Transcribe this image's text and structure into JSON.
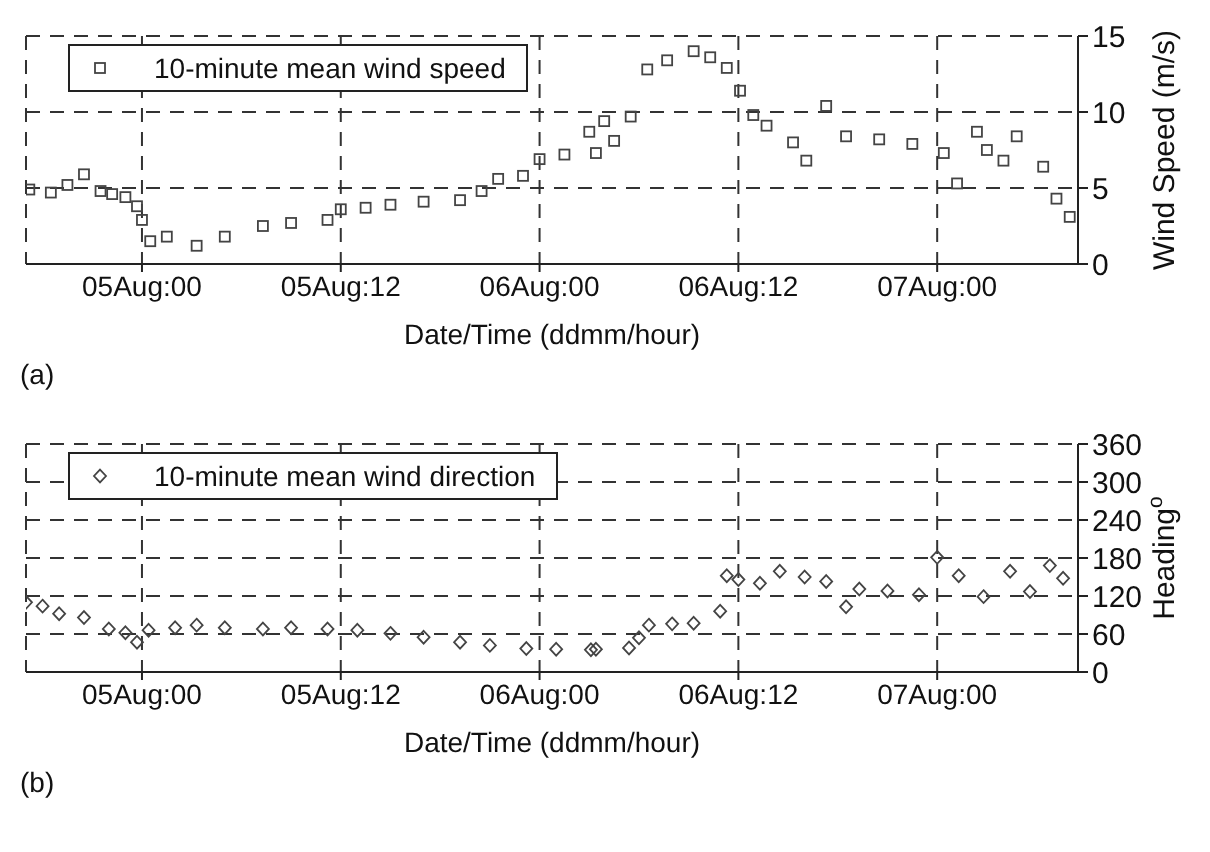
{
  "chart_data": [
    {
      "type": "scatter",
      "xlabel": "Date/Time (ddmm/hour)",
      "ylabel": "Wind Speed (m/s)",
      "annotations": [
        "(a)"
      ],
      "marker": "square",
      "grid": true,
      "legend": "top left",
      "xlim": [
        "--08-04T17:00",
        "--08-07T08:30"
      ],
      "xticks": [
        {
          "value": "--08-05T00:00",
          "label": "05Aug:00"
        },
        {
          "value": "--08-05T12:00",
          "label": "05Aug:12"
        },
        {
          "value": "--08-06T00:00",
          "label": "06Aug:00"
        },
        {
          "value": "--08-06T12:00",
          "label": "06Aug:12"
        },
        {
          "value": "--08-07T00:00",
          "label": "07Aug:00"
        }
      ],
      "ylim": [
        0,
        15
      ],
      "yticks": [
        0,
        5,
        10,
        15
      ],
      "series": [
        {
          "name": "10-minute mean wind speed",
          "color": "#444444",
          "x": [
            "--08-04T17:12",
            "--08-04T18:30",
            "--08-04T19:30",
            "--08-04T20:30",
            "--08-04T21:30",
            "--08-04T22:12",
            "--08-04T23:00",
            "--08-04T23:42",
            "--08-05T00:00",
            "--08-05T00:30",
            "--08-05T01:30",
            "--08-05T03:18",
            "--08-05T05:00",
            "--08-05T07:18",
            "--08-05T09:00",
            "--08-05T11:12",
            "--08-05T12:00",
            "--08-05T13:30",
            "--08-05T15:00",
            "--08-05T17:00",
            "--08-05T19:12",
            "--08-05T20:30",
            "--08-05T21:30",
            "--08-05T23:00",
            "--08-06T00:00",
            "--08-06T01:30",
            "--08-06T03:00",
            "--08-06T03:24",
            "--08-06T03:54",
            "--08-06T04:30",
            "--08-06T05:30",
            "--08-06T06:30",
            "--08-06T07:42",
            "--08-06T09:18",
            "--08-06T10:18",
            "--08-06T11:18",
            "--08-06T12:06",
            "--08-06T12:54",
            "--08-06T13:42",
            "--08-06T15:18",
            "--08-06T16:06",
            "--08-06T17:18",
            "--08-06T18:30",
            "--08-06T20:30",
            "--08-06T22:30",
            "--08-07T00:24",
            "--08-07T01:12",
            "--08-07T02:24",
            "--08-07T03:00",
            "--08-07T04:00",
            "--08-07T04:48",
            "--08-07T06:24",
            "--08-07T07:12",
            "--08-07T08:00"
          ],
          "values": [
            4.9,
            4.7,
            5.2,
            5.9,
            4.8,
            4.6,
            4.4,
            3.8,
            2.9,
            1.5,
            1.8,
            1.2,
            1.8,
            2.5,
            2.7,
            2.9,
            3.6,
            3.7,
            3.9,
            4.1,
            4.2,
            4.8,
            5.6,
            5.8,
            6.9,
            7.2,
            8.7,
            7.3,
            9.4,
            8.1,
            9.7,
            12.8,
            13.4,
            14,
            13.6,
            12.9,
            11.4,
            9.8,
            9.1,
            8,
            6.8,
            10.4,
            8.4,
            8.2,
            7.9,
            7.3,
            5.3,
            8.7,
            7.5,
            6.8,
            8.4,
            6.4,
            4.3,
            3.1
          ]
        }
      ]
    },
    {
      "type": "scatter",
      "xlabel": "Date/Time (ddmm/hour)",
      "ylabel": "Heading$^{o}$",
      "annotations": [
        "(b)"
      ],
      "marker": "diamond",
      "grid": true,
      "legend": "top left",
      "xlim": [
        "--08-04T17:00",
        "--08-07T08:30"
      ],
      "xticks": [
        {
          "value": "--08-05T00:00",
          "label": "05Aug:00"
        },
        {
          "value": "--08-05T12:00",
          "label": "05Aug:12"
        },
        {
          "value": "--08-06T00:00",
          "label": "06Aug:00"
        },
        {
          "value": "--08-06T12:00",
          "label": "06Aug:12"
        },
        {
          "value": "--08-07T00:00",
          "label": "07Aug:00"
        }
      ],
      "ylim": [
        0,
        360
      ],
      "yticks": [
        0,
        60,
        120,
        180,
        240,
        300,
        360
      ],
      "series": [
        {
          "name": "10-minute mean wind direction",
          "color": "#444444",
          "x": [
            "--08-04T17:00",
            "--08-04T18:00",
            "--08-04T19:00",
            "--08-04T20:30",
            "--08-04T22:00",
            "--08-04T23:00",
            "--08-04T23:42",
            "--08-05T00:24",
            "--08-05T02:00",
            "--08-05T03:18",
            "--08-05T05:00",
            "--08-05T07:18",
            "--08-05T09:00",
            "--08-05T11:12",
            "--08-05T13:00",
            "--08-05T15:00",
            "--08-05T17:00",
            "--08-05T19:12",
            "--08-05T21:00",
            "--08-05T23:12",
            "--08-06T01:00",
            "--08-06T03:06",
            "--08-06T03:24",
            "--08-06T05:24",
            "--08-06T06:00",
            "--08-06T06:36",
            "--08-06T08:00",
            "--08-06T09:18",
            "--08-06T10:54",
            "--08-06T11:18",
            "--08-06T12:00",
            "--08-06T13:18",
            "--08-06T14:30",
            "--08-06T16:00",
            "--08-06T17:18",
            "--08-06T18:30",
            "--08-06T19:18",
            "--08-06T21:00",
            "--08-06T22:54",
            "--08-07T00:00",
            "--08-07T01:18",
            "--08-07T02:48",
            "--08-07T04:24",
            "--08-07T05:36",
            "--08-07T06:48",
            "--08-07T07:36"
          ],
          "values": [
            110,
            104,
            92,
            86,
            68,
            62,
            47,
            66,
            70,
            74,
            70,
            68,
            70,
            68,
            66,
            61,
            55,
            47,
            42,
            37,
            36,
            35,
            36,
            38,
            54,
            74,
            76,
            77,
            96,
            152,
            146,
            140,
            159,
            150,
            143,
            103,
            131,
            128,
            122,
            181,
            152,
            119,
            159,
            127,
            168,
            148
          ]
        }
      ]
    }
  ]
}
